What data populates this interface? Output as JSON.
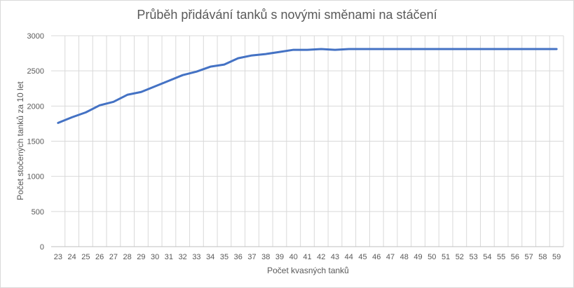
{
  "chart_data": {
    "type": "line",
    "title": "Průběh přidávání tanků s novými směnami na stáčení",
    "xlabel": "Počet kvasných tanků",
    "ylabel": "Počet stočených tanků za 10 let",
    "x": [
      23,
      24,
      25,
      26,
      27,
      28,
      29,
      30,
      31,
      32,
      33,
      34,
      35,
      36,
      37,
      38,
      39,
      40,
      41,
      42,
      43,
      44,
      45,
      46,
      47,
      48,
      49,
      50,
      51,
      52,
      53,
      54,
      55,
      56,
      57,
      58,
      59
    ],
    "series": [
      {
        "values": [
          1760,
          1840,
          1910,
          2010,
          2060,
          2160,
          2200,
          2280,
          2360,
          2440,
          2490,
          2560,
          2590,
          2680,
          2720,
          2740,
          2770,
          2800,
          2800,
          2810,
          2800,
          2810,
          2810,
          2810,
          2810,
          2810,
          2810,
          2810,
          2810,
          2810,
          2810,
          2810,
          2810,
          2810,
          2810,
          2810,
          2810
        ],
        "color": "#4472c4"
      }
    ],
    "ylim": [
      0,
      3000
    ],
    "yticks": [
      0,
      500,
      1000,
      1500,
      2000,
      2500,
      3000
    ],
    "grid": true,
    "legend": "none"
  }
}
